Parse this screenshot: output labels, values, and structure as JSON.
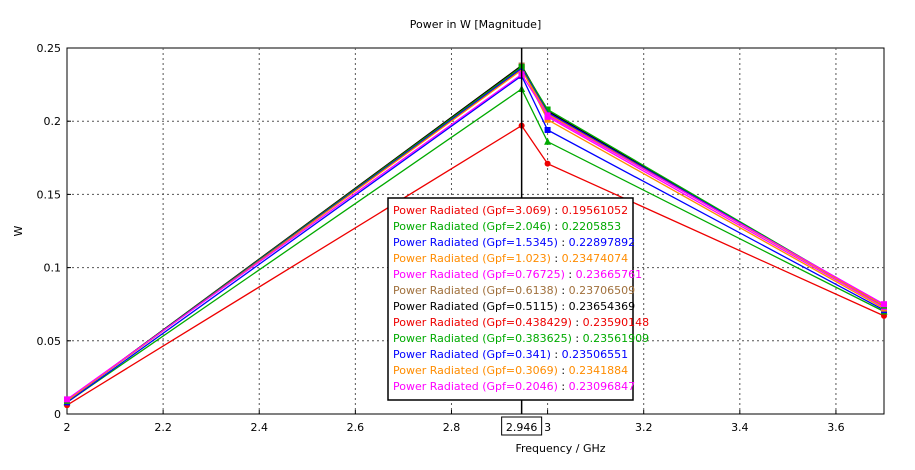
{
  "chart_data": {
    "type": "line",
    "title": "Power in W [Magnitude]",
    "xlabel": "Frequency / GHz",
    "ylabel": "W",
    "xlim": [
      2,
      3.7
    ],
    "ylim": [
      0,
      0.25
    ],
    "x_ticks": [
      2,
      2.2,
      2.4,
      2.6,
      2.8,
      3,
      3.2,
      3.4,
      3.6
    ],
    "x_tick_labels": [
      "2",
      "2.2",
      "2.4",
      "2.6",
      "2.8",
      "3",
      "3.2",
      "3.4",
      "3.6"
    ],
    "y_ticks": [
      0,
      0.05,
      0.1,
      0.15,
      0.2,
      0.25
    ],
    "y_tick_labels": [
      "0",
      "0.05",
      "0.1",
      "0.15",
      "0.2",
      "0.25"
    ],
    "grid": true,
    "marker_x": 2.946,
    "marker_x_label": "2.946",
    "x": [
      2,
      2.946,
      3,
      3.7
    ],
    "series": [
      {
        "name": "Power Radiated (Gpf=3.069)",
        "value_label": "0.19561052",
        "color": "#ee0000",
        "marker": "circle",
        "values": [
          0.006,
          0.197,
          0.171,
          0.067
        ]
      },
      {
        "name": "Power Radiated (Gpf=2.046)",
        "value_label": "0.2205853",
        "color": "#00aa00",
        "marker": "triangle",
        "values": [
          0.008,
          0.222,
          0.186,
          0.07
        ]
      },
      {
        "name": "Power Radiated (Gpf=1.5345)",
        "value_label": "0.22897892",
        "color": "#0000ff",
        "marker": "square",
        "values": [
          0.008,
          0.231,
          0.194,
          0.071
        ]
      },
      {
        "name": "Power Radiated (Gpf=1.023)",
        "value_label": "0.23474074",
        "color": "#ff8c00",
        "marker": "square",
        "values": [
          0.009,
          0.236,
          0.201,
          0.072
        ]
      },
      {
        "name": "Power Radiated (Gpf=0.76725)",
        "value_label": "0.23665761",
        "color": "#ff00ff",
        "marker": "square",
        "values": [
          0.009,
          0.237,
          0.203,
          0.073
        ]
      },
      {
        "name": "Power Radiated (Gpf=0.6138)",
        "value_label": "0.23706509",
        "color": "#a0703c",
        "marker": "square",
        "values": [
          0.009,
          0.238,
          0.205,
          0.074
        ]
      },
      {
        "name": "Power Radiated (Gpf=0.5115)",
        "value_label": "0.23654369",
        "color": "#000000",
        "marker": "none",
        "values": [
          0.009,
          0.238,
          0.207,
          0.074
        ]
      },
      {
        "name": "Power Radiated (Gpf=0.438429)",
        "value_label": "0.23590148",
        "color": "#ee0000",
        "marker": "none",
        "values": [
          0.009,
          0.237,
          0.206,
          0.074
        ]
      },
      {
        "name": "Power Radiated (Gpf=0.383625)",
        "value_label": "0.23561909",
        "color": "#00aa00",
        "marker": "square",
        "values": [
          0.009,
          0.237,
          0.208,
          0.074
        ]
      },
      {
        "name": "Power Radiated (Gpf=0.341)",
        "value_label": "0.23506551",
        "color": "#0000ff",
        "marker": "none",
        "values": [
          0.009,
          0.236,
          0.206,
          0.074
        ]
      },
      {
        "name": "Power Radiated (Gpf=0.3069)",
        "value_label": "0.2341884",
        "color": "#ff8c00",
        "marker": "none",
        "values": [
          0.009,
          0.235,
          0.205,
          0.074
        ]
      },
      {
        "name": "Power Radiated (Gpf=0.2046)",
        "value_label": "0.23096847",
        "color": "#ff00ff",
        "marker": "square",
        "values": [
          0.01,
          0.232,
          0.204,
          0.075
        ]
      }
    ]
  }
}
